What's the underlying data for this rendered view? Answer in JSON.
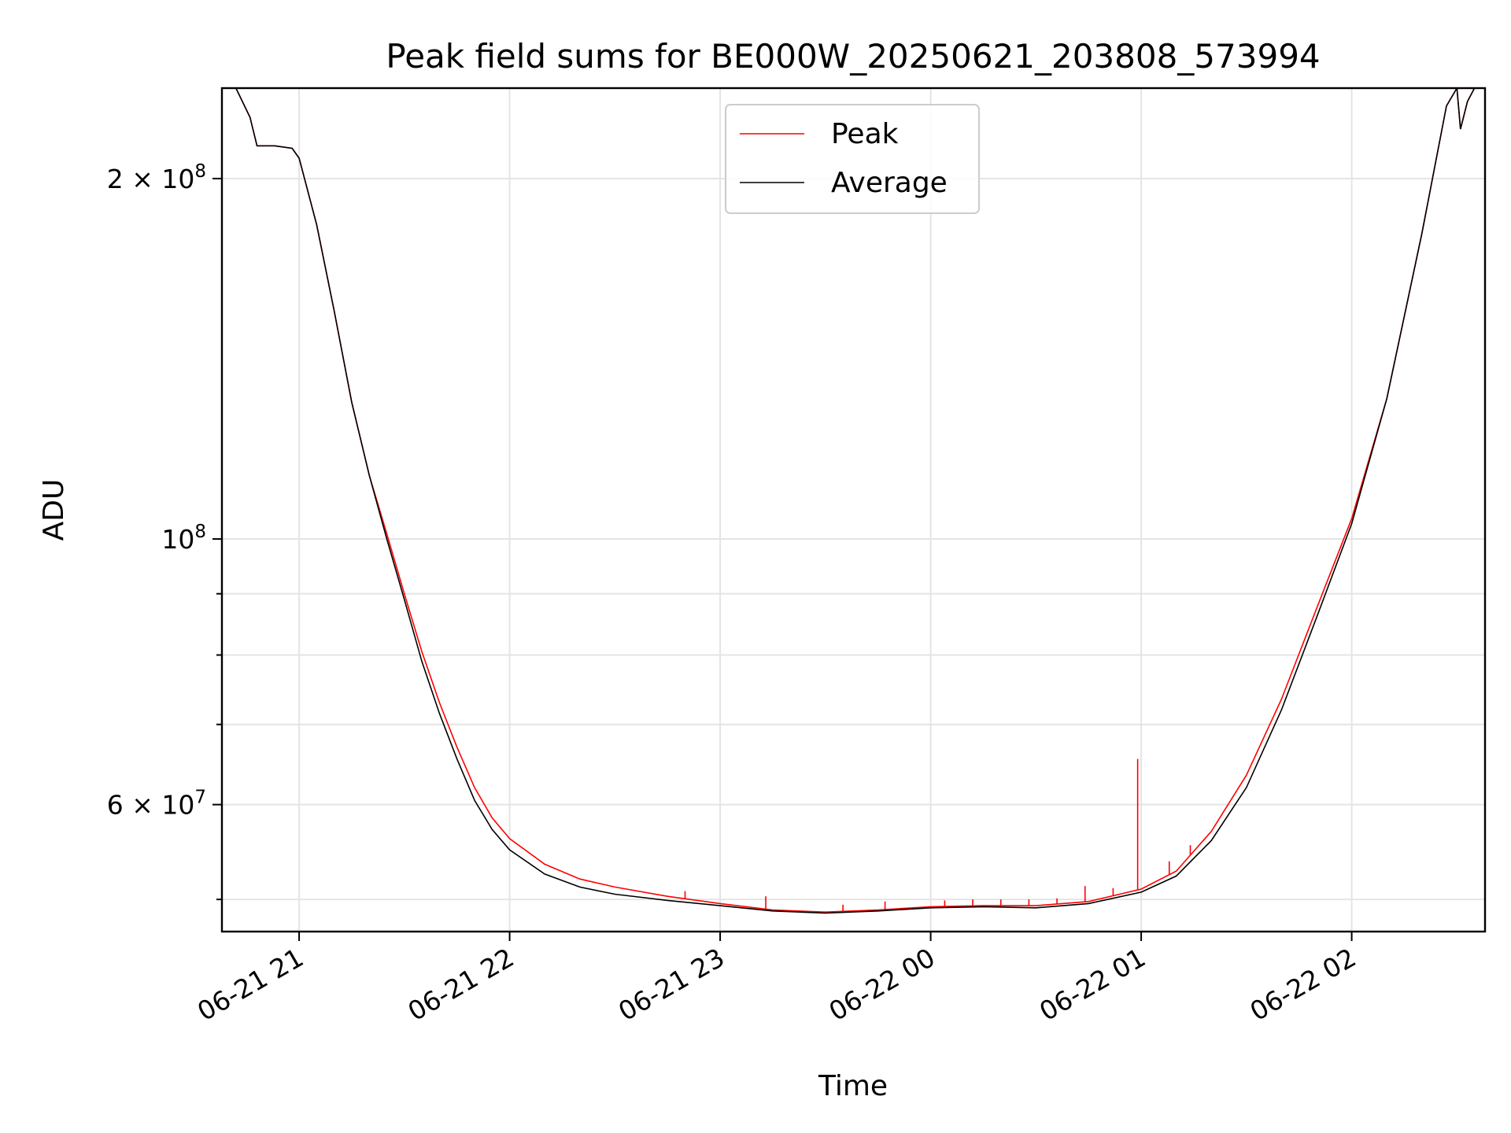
{
  "chart_data": {
    "type": "line",
    "title": "Peak field sums for BE000W_20250621_203808_573994",
    "xlabel": "Time",
    "ylabel": "ADU",
    "y_scale": "log",
    "xlim": [
      "2025-06-21 20:38",
      "2025-06-22 02:38"
    ],
    "ylim": [
      47000000,
      238000000
    ],
    "grid": true,
    "legend_position": "top-center",
    "x_ticks": [
      {
        "value": "2025-06-21 21:00",
        "label": "06-21 21"
      },
      {
        "value": "2025-06-21 22:00",
        "label": "06-21 22"
      },
      {
        "value": "2025-06-21 23:00",
        "label": "06-21 23"
      },
      {
        "value": "2025-06-22 00:00",
        "label": "06-22 00"
      },
      {
        "value": "2025-06-22 01:00",
        "label": "06-22 01"
      },
      {
        "value": "2025-06-22 02:00",
        "label": "06-22 02"
      }
    ],
    "y_major_ticks": [
      {
        "value": 200000000,
        "mant": "2",
        "exp": "8"
      },
      {
        "value": 100000000,
        "mant": "",
        "exp": "8"
      },
      {
        "value": 60000000,
        "mant": "6",
        "exp": "7"
      }
    ],
    "y_minor_ticks": [
      50000000,
      70000000,
      80000000,
      90000000
    ],
    "series": [
      {
        "name": "Average",
        "color": "#000000",
        "points": [
          [
            "2025-06-21 20:38",
            238000000
          ],
          [
            "2025-06-21 20:42",
            238000000
          ],
          [
            "2025-06-21 20:46",
            225000000
          ],
          [
            "2025-06-21 20:48",
            213000000
          ],
          [
            "2025-06-21 20:53",
            213000000
          ],
          [
            "2025-06-21 20:58",
            212000000
          ],
          [
            "2025-06-21 21:00",
            208000000
          ],
          [
            "2025-06-21 21:05",
            183000000
          ],
          [
            "2025-06-21 21:10",
            155000000
          ],
          [
            "2025-06-21 21:15",
            130000000
          ],
          [
            "2025-06-21 21:20",
            113000000
          ],
          [
            "2025-06-21 21:25",
            100000000
          ],
          [
            "2025-06-21 21:30",
            89000000
          ],
          [
            "2025-06-21 21:35",
            79000000
          ],
          [
            "2025-06-21 21:40",
            71500000
          ],
          [
            "2025-06-21 21:45",
            65500000
          ],
          [
            "2025-06-21 21:50",
            60500000
          ],
          [
            "2025-06-21 21:55",
            57200000
          ],
          [
            "2025-06-21 22:00",
            55000000
          ],
          [
            "2025-06-21 22:10",
            52500000
          ],
          [
            "2025-06-21 22:20",
            51200000
          ],
          [
            "2025-06-21 22:30",
            50500000
          ],
          [
            "2025-06-21 22:45",
            49900000
          ],
          [
            "2025-06-21 23:00",
            49400000
          ],
          [
            "2025-06-21 23:15",
            48900000
          ],
          [
            "2025-06-21 23:30",
            48700000
          ],
          [
            "2025-06-21 23:45",
            48900000
          ],
          [
            "2025-06-22 00:00",
            49200000
          ],
          [
            "2025-06-22 00:15",
            49300000
          ],
          [
            "2025-06-22 00:30",
            49200000
          ],
          [
            "2025-06-22 00:45",
            49600000
          ],
          [
            "2025-06-22 01:00",
            50700000
          ],
          [
            "2025-06-22 01:10",
            52300000
          ],
          [
            "2025-06-22 01:20",
            56000000
          ],
          [
            "2025-06-22 01:30",
            62000000
          ],
          [
            "2025-06-22 01:40",
            72000000
          ],
          [
            "2025-06-22 01:50",
            86000000
          ],
          [
            "2025-06-22 02:00",
            103000000
          ],
          [
            "2025-06-22 02:10",
            131000000
          ],
          [
            "2025-06-22 02:20",
            180000000
          ],
          [
            "2025-06-22 02:27",
            230000000
          ],
          [
            "2025-06-22 02:30",
            238000000
          ],
          [
            "2025-06-22 02:31",
            220000000
          ],
          [
            "2025-06-22 02:33",
            232000000
          ],
          [
            "2025-06-22 02:35",
            238000000
          ],
          [
            "2025-06-22 02:38",
            238000000
          ]
        ]
      },
      {
        "name": "Peak",
        "color": "#ff0000",
        "points": [
          [
            "2025-06-21 20:38",
            238000000
          ],
          [
            "2025-06-21 20:42",
            238000000
          ],
          [
            "2025-06-21 20:46",
            225000000
          ],
          [
            "2025-06-21 20:48",
            213000000
          ],
          [
            "2025-06-21 20:53",
            213000000
          ],
          [
            "2025-06-21 20:58",
            212000000
          ],
          [
            "2025-06-21 21:00",
            208000000
          ],
          [
            "2025-06-21 21:05",
            183000000
          ],
          [
            "2025-06-21 21:10",
            155000000
          ],
          [
            "2025-06-21 21:15",
            130000000
          ],
          [
            "2025-06-21 21:20",
            113000000
          ],
          [
            "2025-06-21 21:25",
            101000000
          ],
          [
            "2025-06-21 21:30",
            90000000
          ],
          [
            "2025-06-21 21:35",
            80500000
          ],
          [
            "2025-06-21 21:40",
            73000000
          ],
          [
            "2025-06-21 21:45",
            67000000
          ],
          [
            "2025-06-21 21:50",
            62000000
          ],
          [
            "2025-06-21 21:55",
            58500000
          ],
          [
            "2025-06-21 22:00",
            56200000
          ],
          [
            "2025-06-21 22:10",
            53500000
          ],
          [
            "2025-06-21 22:20",
            52000000
          ],
          [
            "2025-06-21 22:30",
            51200000
          ],
          [
            "2025-06-21 22:45",
            50300000
          ],
          [
            "2025-06-21 23:00",
            49600000
          ],
          [
            "2025-06-21 23:15",
            49000000
          ],
          [
            "2025-06-21 23:30",
            48800000
          ],
          [
            "2025-06-21 23:45",
            49000000
          ],
          [
            "2025-06-22 00:00",
            49300000
          ],
          [
            "2025-06-22 00:15",
            49400000
          ],
          [
            "2025-06-22 00:30",
            49400000
          ],
          [
            "2025-06-22 00:45",
            49800000
          ],
          [
            "2025-06-22 01:00",
            51000000
          ],
          [
            "2025-06-22 01:10",
            52800000
          ],
          [
            "2025-06-22 01:20",
            57000000
          ],
          [
            "2025-06-22 01:30",
            63500000
          ],
          [
            "2025-06-22 01:40",
            73500000
          ],
          [
            "2025-06-22 01:50",
            87500000
          ],
          [
            "2025-06-22 02:00",
            104000000
          ],
          [
            "2025-06-22 02:10",
            131000000
          ],
          [
            "2025-06-22 02:20",
            180000000
          ],
          [
            "2025-06-22 02:27",
            230000000
          ],
          [
            "2025-06-22 02:30",
            238000000
          ],
          [
            "2025-06-22 02:31",
            220000000
          ],
          [
            "2025-06-22 02:33",
            232000000
          ],
          [
            "2025-06-22 02:35",
            238000000
          ],
          [
            "2025-06-22 02:38",
            238000000
          ]
        ],
        "spikes": [
          [
            "2025-06-21 22:50",
            50800000
          ],
          [
            "2025-06-21 23:13",
            50300000
          ],
          [
            "2025-06-21 23:35",
            49500000
          ],
          [
            "2025-06-21 23:47",
            49800000
          ],
          [
            "2025-06-22 00:04",
            49900000
          ],
          [
            "2025-06-22 00:12",
            50000000
          ],
          [
            "2025-06-22 00:20",
            50000000
          ],
          [
            "2025-06-22 00:28",
            50000000
          ],
          [
            "2025-06-22 00:36",
            50100000
          ],
          [
            "2025-06-22 00:44",
            51300000
          ],
          [
            "2025-06-22 00:52",
            51100000
          ],
          [
            "2025-06-22 00:59",
            65500000
          ],
          [
            "2025-06-22 01:08",
            53800000
          ],
          [
            "2025-06-22 01:14",
            55500000
          ]
        ]
      }
    ]
  }
}
